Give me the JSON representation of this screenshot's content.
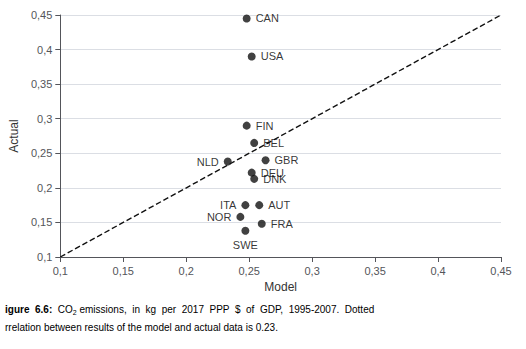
{
  "chart_data": {
    "type": "scatter",
    "xlabel": "Model",
    "ylabel": "Actual",
    "xlim": [
      0.1,
      0.45
    ],
    "ylim": [
      0.1,
      0.45
    ],
    "xticks": [
      {
        "value": 0.1,
        "label": "0,1"
      },
      {
        "value": 0.15,
        "label": "0,15"
      },
      {
        "value": 0.2,
        "label": "0,2"
      },
      {
        "value": 0.25,
        "label": "0,25"
      },
      {
        "value": 0.3,
        "label": "0,3"
      },
      {
        "value": 0.35,
        "label": "0,35"
      },
      {
        "value": 0.4,
        "label": "0,4"
      },
      {
        "value": 0.45,
        "label": "0,45"
      }
    ],
    "yticks": [
      {
        "value": 0.1,
        "label": "0,1"
      },
      {
        "value": 0.15,
        "label": "0,15"
      },
      {
        "value": 0.2,
        "label": "0,2"
      },
      {
        "value": 0.25,
        "label": "0,25"
      },
      {
        "value": 0.3,
        "label": "0,3"
      },
      {
        "value": 0.35,
        "label": "0,35"
      },
      {
        "value": 0.4,
        "label": "0,4"
      },
      {
        "value": 0.45,
        "label": "0,45"
      }
    ],
    "grid": true,
    "series": [
      {
        "type": "scatter",
        "color": "#111111",
        "marker": "circle",
        "labels": [
          "CAN",
          "USA",
          "FIN",
          "BEL",
          "GBR",
          "NLD",
          "DEU",
          "DNK",
          "ITA",
          "AUT",
          "NOR",
          "FRA",
          "SWE"
        ],
        "x": [
          0.248,
          0.252,
          0.248,
          0.254,
          0.263,
          0.233,
          0.252,
          0.254,
          0.247,
          0.258,
          0.243,
          0.26,
          0.247
        ],
        "values": [
          0.445,
          0.39,
          0.29,
          0.265,
          0.24,
          0.238,
          0.222,
          0.213,
          0.175,
          0.175,
          0.158,
          0.148,
          0.138
        ]
      },
      {
        "type": "line",
        "color": "#111111",
        "line_style": "dashed",
        "x": [
          0.1,
          0.45
        ],
        "values": [
          0.1,
          0.45
        ]
      }
    ],
    "annotations": [
      "igure  6.6:",
      "CO",
      "2",
      " emissions,  in  kg  per  2017  PPP  $  of  GDP,  1995-2007.  Dotted",
      "rrelation between results of the model and actual data is 0.23."
    ]
  }
}
